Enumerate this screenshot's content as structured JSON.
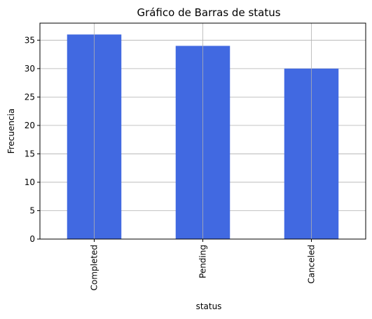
{
  "chart_data": {
    "type": "bar",
    "title": "Gráfico de Barras de status",
    "xlabel": "status",
    "ylabel": "Frecuencia",
    "categories": [
      "Completed",
      "Pending",
      "Canceled"
    ],
    "values": [
      36,
      34,
      30
    ],
    "ylim": [
      0,
      38
    ],
    "yticks": [
      0,
      5,
      10,
      15,
      20,
      25,
      30,
      35
    ],
    "bar_color": "#4169e1",
    "grid": true,
    "legend": "none"
  }
}
